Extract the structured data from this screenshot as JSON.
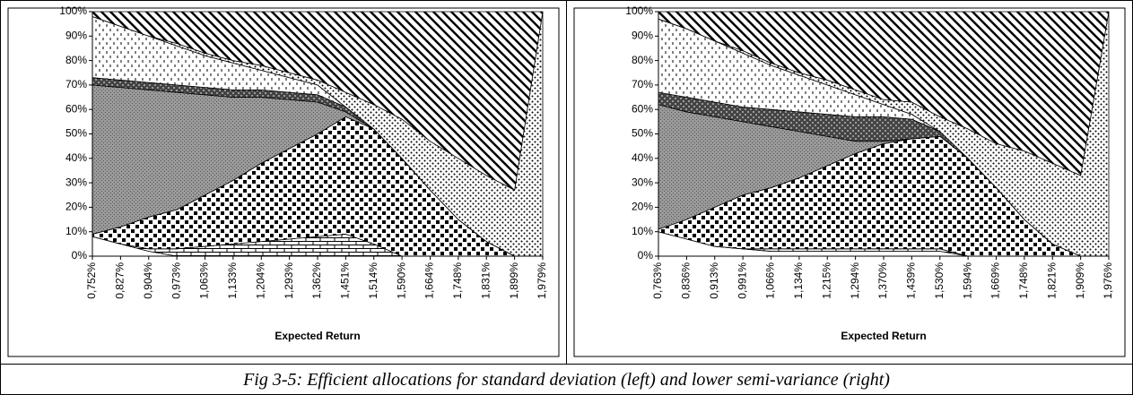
{
  "caption": "Fig 3-5: Efficient allocations for standard deviation (left) and lower semi-variance (right)",
  "chart_data": [
    {
      "type": "area",
      "stacked": true,
      "x_label": "Expected Return",
      "categories": [
        "0,752%",
        "0,827%",
        "0,904%",
        "0,973%",
        "1,063%",
        "1,133%",
        "1,204%",
        "1,293%",
        "1,362%",
        "1,451%",
        "1,514%",
        "1,590%",
        "1,664%",
        "1,748%",
        "1,831%",
        "1,899%",
        "1,979%"
      ],
      "ylim": [
        0,
        100
      ],
      "yticks": [
        {
          "value": 0,
          "label": "0%"
        },
        {
          "value": 10,
          "label": "10%"
        },
        {
          "value": 20,
          "label": "20%"
        },
        {
          "value": 30,
          "label": "30%"
        },
        {
          "value": 40,
          "label": "40%"
        },
        {
          "value": 50,
          "label": "50%"
        },
        {
          "value": 60,
          "label": "60%"
        },
        {
          "value": 70,
          "label": "70%"
        },
        {
          "value": 80,
          "label": "80%"
        },
        {
          "value": 90,
          "label": "90%"
        },
        {
          "value": 100,
          "label": "100%"
        }
      ],
      "series": [
        {
          "pattern": "plain",
          "values": [
            8,
            5,
            2,
            0,
            0,
            0,
            0,
            0,
            0,
            0,
            0,
            0,
            0,
            0,
            0,
            0,
            0
          ]
        },
        {
          "pattern": "brick",
          "values": [
            0,
            0,
            1,
            3,
            4,
            5,
            6,
            7,
            8,
            9,
            5,
            0,
            0,
            0,
            0,
            0,
            0
          ]
        },
        {
          "pattern": "checker",
          "values": [
            1,
            7,
            13,
            16,
            21,
            26,
            32,
            37,
            42,
            48,
            47,
            40,
            27,
            15,
            6,
            0,
            0
          ]
        },
        {
          "pattern": "gray-dots",
          "values": [
            61,
            57,
            52,
            48,
            41,
            34,
            27,
            20,
            13,
            2,
            0,
            0,
            0,
            0,
            0,
            0,
            0
          ]
        },
        {
          "pattern": "dark-band",
          "values": [
            3,
            3,
            3,
            3,
            3,
            3,
            3,
            3,
            3,
            2,
            0,
            0,
            0,
            0,
            0,
            0,
            0
          ]
        },
        {
          "pattern": "dashes",
          "values": [
            25,
            22,
            19,
            16,
            13,
            11,
            8,
            6,
            4,
            0,
            0,
            0,
            0,
            0,
            0,
            0,
            0
          ]
        },
        {
          "pattern": "dots",
          "values": [
            0,
            0,
            0,
            1,
            1,
            1,
            2,
            2,
            2,
            6,
            10,
            16,
            20,
            25,
            27,
            27,
            100
          ]
        },
        {
          "pattern": "diagonal",
          "values": [
            2,
            6,
            10,
            13,
            17,
            20,
            22,
            25,
            28,
            33,
            38,
            44,
            53,
            60,
            67,
            73,
            0
          ]
        }
      ]
    },
    {
      "type": "area",
      "stacked": true,
      "x_label": "Expected Return",
      "categories": [
        "0,763%",
        "0,836%",
        "0,913%",
        "0,991%",
        "1,066%",
        "1,134%",
        "1,215%",
        "1,294%",
        "1,370%",
        "1,439%",
        "1,530%",
        "1,594%",
        "1,669%",
        "1,748%",
        "1,821%",
        "1,909%",
        "1,976%"
      ],
      "ylim": [
        0,
        100
      ],
      "yticks": [
        {
          "value": 0,
          "label": "0%"
        },
        {
          "value": 10,
          "label": "10%"
        },
        {
          "value": 20,
          "label": "20%"
        },
        {
          "value": 30,
          "label": "30%"
        },
        {
          "value": 40,
          "label": "40%"
        },
        {
          "value": 50,
          "label": "50%"
        },
        {
          "value": 60,
          "label": "60%"
        },
        {
          "value": 70,
          "label": "70%"
        },
        {
          "value": 80,
          "label": "80%"
        },
        {
          "value": 90,
          "label": "90%"
        },
        {
          "value": 100,
          "label": "100%"
        }
      ],
      "series": [
        {
          "pattern": "plain",
          "values": [
            10,
            7,
            4,
            3,
            2,
            2,
            2,
            2,
            2,
            2,
            2,
            0,
            0,
            0,
            0,
            0,
            0
          ]
        },
        {
          "pattern": "brick",
          "values": [
            0,
            0,
            0,
            0,
            1,
            1,
            1,
            1,
            1,
            1,
            1,
            0,
            0,
            0,
            0,
            0,
            0
          ]
        },
        {
          "pattern": "checker",
          "values": [
            1,
            8,
            16,
            22,
            25,
            29,
            34,
            39,
            43,
            45,
            46,
            40,
            28,
            15,
            5,
            0,
            0
          ]
        },
        {
          "pattern": "gray-dots",
          "values": [
            51,
            44,
            37,
            30,
            25,
            19,
            12,
            5,
            1,
            0,
            0,
            0,
            0,
            0,
            0,
            0,
            0
          ]
        },
        {
          "pattern": "dark-band",
          "values": [
            5,
            6,
            6,
            6,
            7,
            8,
            9,
            10,
            10,
            8,
            2,
            0,
            0,
            0,
            0,
            0,
            0
          ]
        },
        {
          "pattern": "dashes",
          "values": [
            30,
            28,
            25,
            22,
            18,
            15,
            12,
            9,
            5,
            2,
            0,
            0,
            0,
            0,
            0,
            0,
            0
          ]
        },
        {
          "pattern": "dots",
          "values": [
            0,
            0,
            0,
            1,
            1,
            1,
            2,
            2,
            2,
            5,
            6,
            12,
            18,
            28,
            33,
            33,
            100
          ]
        },
        {
          "pattern": "diagonal",
          "values": [
            3,
            7,
            12,
            16,
            21,
            25,
            28,
            32,
            36,
            37,
            43,
            48,
            54,
            57,
            62,
            67,
            0
          ]
        }
      ]
    }
  ]
}
